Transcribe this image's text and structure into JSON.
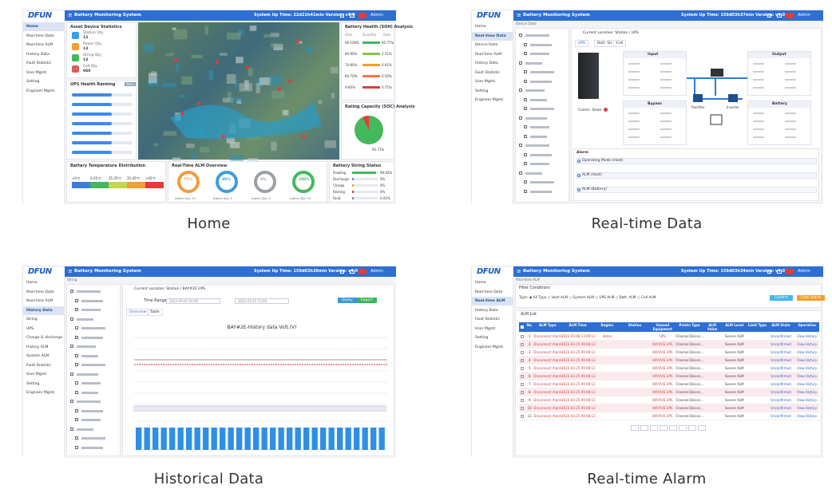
{
  "logo": "DFUN",
  "system_title": "Battery Monitoring System",
  "user": "Admin",
  "panels": [
    {
      "view": "home",
      "caption": "Home",
      "status": "System Up Time: 22d21h41min  Version: v4.0",
      "menu": [
        "Home",
        "Real-time Data",
        "Real-time ALM",
        "History Data",
        "Fault Statistic",
        "User Mgmt.",
        "Setting",
        "Engineer Mgmt."
      ],
      "active": 0,
      "cards": {
        "assets": "Asset Device Statistics",
        "ranking": "UPS Health Ranking",
        "more": "More",
        "soh": "Battery Health (SOH) Analysis",
        "soc": "Rating Capacity (SOC) Analysis",
        "temp": "Battery Temperature Distribution",
        "alm": "Real-Time ALM Overview",
        "string": "Battery String Status"
      },
      "assets": [
        [
          "Station Qty",
          "13"
        ],
        [
          "Power Qty",
          "13"
        ],
        [
          "String Qty",
          "13"
        ],
        [
          "Cell Qty",
          "960"
        ]
      ],
      "soh_head": [
        "SOH",
        "Quantity",
        "Rate"
      ],
      "soh_rows": [
        [
          "90-100%",
          "95.77%"
        ],
        [
          "80-90%",
          "2.11%"
        ],
        [
          "70-80%",
          "0.91%"
        ],
        [
          "60-70%",
          "0.50%"
        ],
        [
          "0-60%",
          "0.71%"
        ]
      ],
      "soc_value": "92.71%",
      "temp_ranges": [
        "<0℃",
        "0-25℃",
        "25-35℃",
        "35-45℃",
        ">45℃"
      ],
      "alm_donuts": [
        [
          "77%",
          "Alarm Qty: 11"
        ],
        [
          "60%",
          "Alarm Qty: 5"
        ],
        [
          "0%",
          "Alarm Qty: 0"
        ],
        [
          "100%",
          "Alarm Qty: 13"
        ]
      ],
      "string_rows": [
        [
          "Floating",
          "99.92%"
        ],
        [
          "Discharge",
          "0%"
        ],
        [
          "Charge",
          "0%"
        ],
        [
          "Resting",
          "0%"
        ],
        [
          "Fault",
          "0.01%"
        ]
      ]
    },
    {
      "view": "realtime",
      "caption": "Real-time Data",
      "status": "System Up Time: 159d03h37min  Version: v4.0",
      "menu": [
        "Home",
        "Real-time Data",
        "Device Data",
        "Real-time ALM",
        "History Data",
        "Fault Statistic",
        "User Mgmt.",
        "Setting",
        "Engineer Mgmt."
      ],
      "active": 1,
      "breadcrumb": "Device Data",
      "location": "Current Location: Station / UPS",
      "tabs": [
        "UPS",
        "Batt. Str.",
        "Cell"
      ],
      "comm_state": "Comm. State",
      "boxes": [
        "Input",
        "Output",
        "Bypass",
        "Battery"
      ],
      "units": [
        "Rectifier",
        "Inverter"
      ],
      "alarm_title": "Alarm",
      "alarm_rows": [
        "Operating Mode (Host)",
        "ALM (Host)",
        "ALM (Battery)"
      ]
    },
    {
      "view": "history",
      "caption": "Historical Data",
      "status": "System Up Time: 159d03h30min  Version: v4.0",
      "menu": [
        "Home",
        "Real-time Data",
        "Real-time ALM",
        "History Data",
        "String",
        "UPS",
        "Charge & discharge",
        "History ALM",
        "System ALM",
        "Fault Statistic",
        "User Mgmt.",
        "Setting",
        "Engineer Mgmt."
      ],
      "active": 3,
      "breadcrumb": "String",
      "location": "Current Location: Station / BAY#2E UPS",
      "time_range": "Time Range",
      "start": "2022-03-01 00:00",
      "end": "2022-03-25 23:59",
      "query": "Query",
      "export": "Export",
      "tabs": [
        "Overview",
        "Table"
      ],
      "chart_title": "BAY#2E-History data Volt.(V)"
    },
    {
      "view": "alarm",
      "caption": "Real-time Alarm",
      "status": "System Up Time: 159d03h34min  Version: v4.0",
      "menu": [
        "Home",
        "Real-time Data",
        "Real-time ALM",
        "History Data",
        "Fault Statistic",
        "User Mgmt.",
        "Setting",
        "Engineer Mgmt."
      ],
      "active": 2,
      "breadcrumb": "Real-time ALM",
      "filter_title": "Filter Conditions",
      "filter_type": "Type: ◉ All Type ○ Host ALM ○ System ALM ○ UPS ALM ○ Batt. ALM ○ Cell ALM",
      "confirm": "Confirm",
      "clear": "Clear Alarm",
      "list_title": "ALM List",
      "headers": [
        "No.",
        "ALM Type",
        "ALM Time",
        "Region",
        "Station",
        "Unused Equipment",
        "Points Type",
        "ALM Value",
        "ALM Level",
        "Limit Type",
        "ALM State",
        "Operation"
      ],
      "rows": [
        [
          "1",
          "Disconnect Alarm",
          "2022-03-08 13:09:12",
          "demo",
          null,
          "UPS",
          "Channel Discon...",
          null,
          "Severe ALM",
          null,
          "Unconfirmed",
          "View History"
        ],
        [
          "2",
          "Disconnect Alarm",
          "2022-03-25 09:08:12",
          null,
          null,
          "BAY#2E UPS",
          "Channel Discon...",
          null,
          "Severe ALM",
          null,
          "Unconfirmed",
          "View History"
        ],
        [
          "3",
          "Disconnect Alarm",
          "2022-03-25 09:08:12",
          null,
          null,
          "BAY#2E UPS",
          "Channel Discon...",
          null,
          "Severe ALM",
          null,
          "Unconfirmed",
          "View History"
        ],
        [
          "4",
          "Disconnect Alarm",
          "2022-03-25 09:08:12",
          null,
          null,
          "BAY#2E UPS",
          "Channel Discon...",
          null,
          "Severe ALM",
          null,
          "Unconfirmed",
          "View History"
        ],
        [
          "5",
          "Disconnect Alarm",
          "2022-03-25 09:08:12",
          null,
          null,
          "BAY#2E UPS",
          "Channel Discon...",
          null,
          "Severe ALM",
          null,
          "Unconfirmed",
          "View History"
        ],
        [
          "6",
          "Disconnect Alarm",
          "2022-03-25 09:08:12",
          null,
          null,
          "BAY#2E UPS",
          "Channel Discon...",
          null,
          "Severe ALM",
          null,
          "Unconfirmed",
          "View History"
        ],
        [
          "7",
          "Disconnect Alarm",
          "2022-03-25 09:08:12",
          null,
          null,
          "BAY#2E UPS",
          "Channel Discon...",
          null,
          "Severe ALM",
          null,
          "Unconfirmed",
          "View History"
        ],
        [
          "8",
          "Disconnect Alarm",
          "2022-03-25 09:08:12",
          null,
          null,
          "BAY#2E UPS",
          "Channel Discon...",
          null,
          "Severe ALM",
          null,
          "Unconfirmed",
          "View History"
        ],
        [
          "9",
          "Disconnect Alarm",
          "2022-03-25 09:08:12",
          null,
          null,
          "BAY#2E UPS",
          "Channel Discon...",
          null,
          "Severe ALM",
          null,
          "Unconfirmed",
          "View History"
        ],
        [
          "10",
          "Disconnect Alarm",
          "2022-03-25 09:08:12",
          null,
          null,
          "BAY#2E UPS",
          "Channel Discon...",
          null,
          "Severe ALM",
          null,
          "Unconfirmed",
          "View History"
        ],
        [
          "11",
          "Disconnect Alarm",
          "2022-03-25 09:08:12",
          null,
          null,
          "BAY#2E UPS",
          "Channel Discon...",
          null,
          "Severe ALM",
          null,
          "Unconfirmed",
          "View History"
        ]
      ]
    }
  ]
}
